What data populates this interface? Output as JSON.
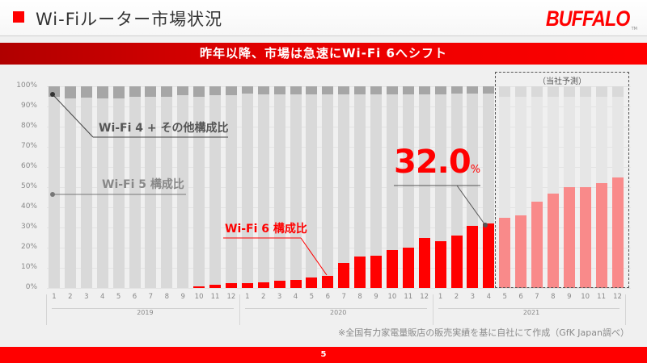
{
  "header": {
    "title": "Wi-Fiルーター市場状況",
    "logo": "BUFFALO",
    "logo_tm": "TM"
  },
  "banner": {
    "text": "昨年以降、市場は急速にWi-Fi 6へシフト"
  },
  "chart_data": {
    "type": "bar",
    "stacked": true,
    "title": "",
    "xlabel": "",
    "ylabel": "",
    "ylim": [
      0,
      100
    ],
    "y_ticks": [
      "0%",
      "10%",
      "20%",
      "30%",
      "40%",
      "50%",
      "60%",
      "70%",
      "80%",
      "90%",
      "100%"
    ],
    "categories": [
      "2019-1",
      "2019-2",
      "2019-3",
      "2019-4",
      "2019-5",
      "2019-6",
      "2019-7",
      "2019-8",
      "2019-9",
      "2019-10",
      "2019-11",
      "2019-12",
      "2020-1",
      "2020-2",
      "2020-3",
      "2020-4",
      "2020-5",
      "2020-6",
      "2020-7",
      "2020-8",
      "2020-9",
      "2020-10",
      "2020-11",
      "2020-12",
      "2021-1",
      "2021-2",
      "2021-3",
      "2021-4",
      "2021-5",
      "2021-6",
      "2021-7",
      "2021-8",
      "2021-9",
      "2021-10",
      "2021-11",
      "2021-12"
    ],
    "month_labels": [
      "1",
      "2",
      "3",
      "4",
      "5",
      "6",
      "7",
      "8",
      "9",
      "10",
      "11",
      "12",
      "1",
      "2",
      "3",
      "4",
      "5",
      "6",
      "7",
      "8",
      "9",
      "10",
      "11",
      "12",
      "1",
      "2",
      "3",
      "4",
      "5",
      "6",
      "7",
      "8",
      "9",
      "10",
      "11",
      "12"
    ],
    "year_labels": [
      "2019",
      "2020",
      "2021"
    ],
    "series": [
      {
        "name": "Wi-Fi 6 構成比",
        "color": "#ff0000",
        "values": [
          0,
          0,
          0,
          0,
          0,
          0,
          0,
          0,
          0,
          0.8,
          1.8,
          2.3,
          2.3,
          2.8,
          3.5,
          4.2,
          5.2,
          6.2,
          12.5,
          15.5,
          16.0,
          19.0,
          20.0,
          25.0,
          23.2,
          26.0,
          31.0,
          32.0,
          35.0,
          36.0,
          43.0,
          47.0,
          50.0,
          50.0,
          52.0,
          55.0
        ]
      },
      {
        "name": "Wi-Fi 5 構成比",
        "color": "#d9d9d9",
        "values": [
          95.0,
          94.0,
          94.5,
          94.0,
          94.0,
          95.0,
          95.0,
          95.0,
          95.5,
          94.0,
          93.8,
          93.2,
          94.2,
          93.2,
          92.5,
          91.8,
          91.0,
          90.0,
          83.5,
          80.5,
          80.0,
          77.0,
          76.0,
          71.0,
          73.0,
          70.5,
          65.5,
          64.5,
          60.0,
          59.0,
          52.0,
          48.0,
          45.0,
          45.0,
          43.0,
          40.0
        ]
      },
      {
        "name": "Wi-Fi 4 + その他構成比",
        "color": "#a6a6a6",
        "values": [
          5.0,
          6.0,
          5.5,
          6.0,
          6.0,
          5.0,
          5.0,
          5.0,
          4.5,
          5.2,
          4.4,
          4.5,
          3.5,
          4.0,
          4.0,
          4.0,
          3.8,
          3.8,
          4.0,
          4.0,
          4.0,
          4.0,
          4.0,
          4.0,
          3.8,
          3.5,
          3.5,
          3.5,
          5.0,
          5.0,
          5.0,
          5.0,
          5.0,
          5.0,
          5.0,
          5.0
        ]
      }
    ],
    "forecast_range": [
      "2021-5",
      "2021-12"
    ],
    "forecast_label": "（当社予測）",
    "annotations": [
      {
        "text": "Wi-Fi 4 + その他構成比",
        "target": "2019-1"
      },
      {
        "text": "Wi-Fi 5 構成比",
        "target": "2019-1"
      },
      {
        "text": "Wi-Fi 6 構成比",
        "target": "2020-6"
      },
      {
        "text": "32.0%",
        "target": "2021-4"
      }
    ],
    "grid": true,
    "legend_position": "inline-annotations"
  },
  "annotations": {
    "wifi4": "Wi-Fi 4 + その他構成比",
    "wifi5": "Wi-Fi 5 構成比",
    "wifi6": "Wi-Fi 6 構成比",
    "highlight_value": "32.0",
    "highlight_unit": "%",
    "forecast": "（当社予測）"
  },
  "footnote": "※全国有力家電量販店の販売実績を基に自社にて作成（GfK Japan調べ）",
  "footer": {
    "page_number": "5"
  }
}
